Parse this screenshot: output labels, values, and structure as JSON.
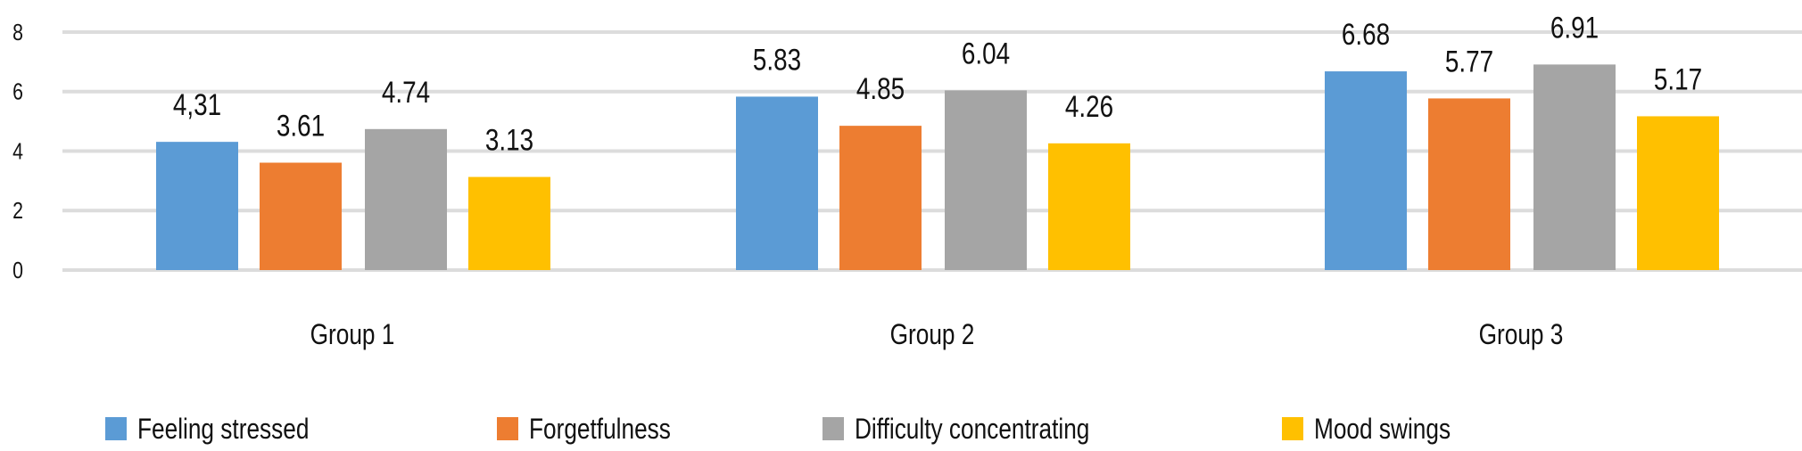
{
  "chart_data": {
    "type": "bar",
    "title": "",
    "xlabel": "",
    "ylabel": "",
    "ylim": [
      0,
      8
    ],
    "yticks": [
      0,
      2,
      4,
      6,
      8
    ],
    "ytick_labels": [
      "0",
      "2",
      "4",
      "6",
      "8"
    ],
    "grid": true,
    "legend_position": "bottom",
    "categories": [
      "Group 1",
      "Group 2",
      "Group 3"
    ],
    "series": [
      {
        "name": "Feeling stressed",
        "color": "#5b9bd5",
        "values": [
          4.31,
          5.83,
          6.68
        ],
        "labels": [
          "4,31",
          "5.83",
          "6.68"
        ]
      },
      {
        "name": "Forgetfulness",
        "color": "#ed7d31",
        "values": [
          3.61,
          4.85,
          5.77
        ],
        "labels": [
          "3.61",
          "4.85",
          "5.77"
        ]
      },
      {
        "name": "Difficulty concentrating",
        "color": "#a5a5a5",
        "values": [
          4.74,
          6.04,
          6.91
        ],
        "labels": [
          "4.74",
          "6.04",
          "6.91"
        ]
      },
      {
        "name": "Mood swings",
        "color": "#ffc000",
        "values": [
          3.13,
          4.26,
          5.17
        ],
        "labels": [
          "3.13",
          "4.26",
          "5.17"
        ]
      }
    ]
  }
}
